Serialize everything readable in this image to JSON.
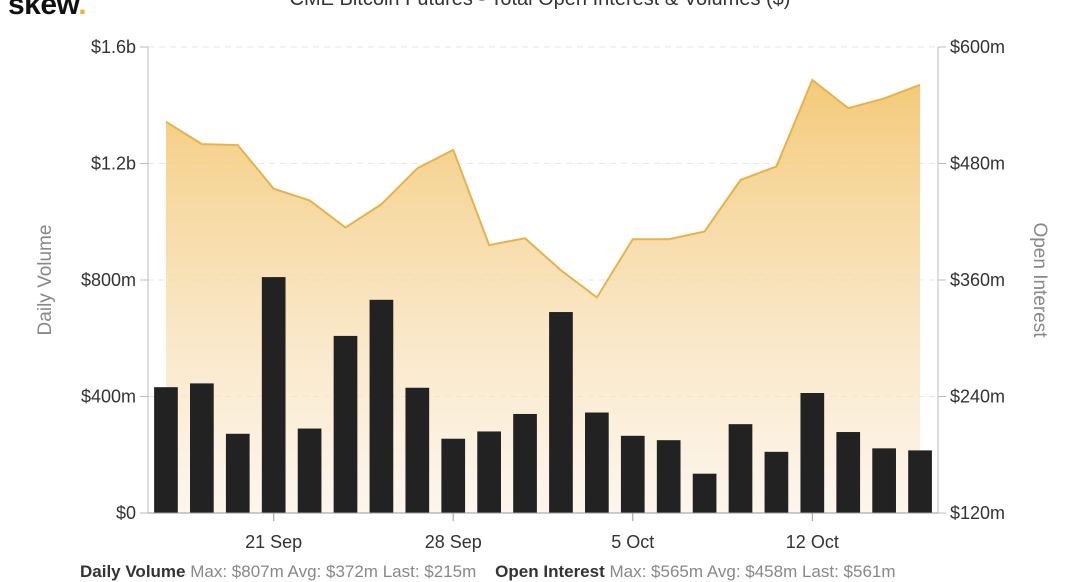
{
  "brand": {
    "name": "skew",
    "dot": "."
  },
  "chart_data": {
    "type": "bar+area",
    "title": "CME Bitcoin Futures - Total Open Interest & Volumes ($)",
    "x_ticks": [
      "21 Sep",
      "28 Sep",
      "5 Oct",
      "12 Oct"
    ],
    "x_tick_index": [
      3,
      8,
      13,
      18
    ],
    "left_axis": {
      "label": "Daily Volume",
      "ticks": [
        "$0",
        "$400m",
        "$800m",
        "$1.2b",
        "$1.6b"
      ],
      "range": [
        0,
        1600
      ]
    },
    "right_axis": {
      "label": "Open Interest",
      "ticks": [
        "$120m",
        "$240m",
        "$360m",
        "$480m",
        "$600m"
      ],
      "range": [
        120,
        600
      ]
    },
    "series": [
      {
        "name": "Daily Volume",
        "kind": "bar",
        "color": "#222222",
        "values": [
          432,
          445,
          272,
          810,
          290,
          608,
          732,
          430,
          255,
          280,
          340,
          690,
          345,
          265,
          250,
          135,
          305,
          210,
          412,
          278,
          222,
          215
        ]
      },
      {
        "name": "Open Interest",
        "kind": "area",
        "color": "#f0c060",
        "values": [
          523,
          500,
          499,
          454,
          442,
          414,
          438,
          475,
          494,
          396,
          403,
          370,
          342,
          402,
          402,
          410,
          463,
          477,
          566,
          537,
          547,
          561
        ]
      }
    ]
  },
  "legend": {
    "items": [
      {
        "name": "Daily Volume",
        "stats": "Max: $807m  Avg: $372m  Last: $215m"
      },
      {
        "name": "Open Interest",
        "stats": "Max: $565m  Avg: $458m  Last: $561m"
      }
    ]
  }
}
